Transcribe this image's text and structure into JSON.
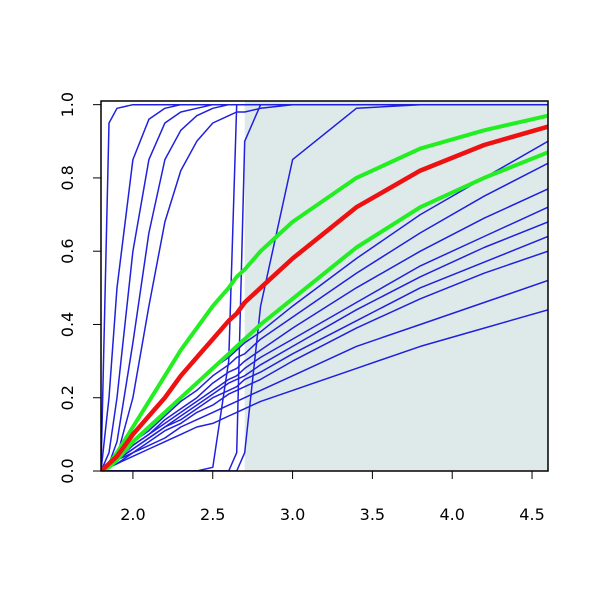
{
  "chart_data": {
    "type": "line",
    "x": [
      1.8,
      1.85,
      1.9,
      2.0,
      2.1,
      2.2,
      2.3,
      2.4,
      2.5,
      2.6,
      2.65,
      2.7,
      2.8,
      3.0,
      3.4,
      3.8,
      4.2,
      4.6
    ],
    "xlim": [
      1.8,
      4.6
    ],
    "ylim": [
      0,
      1.01
    ],
    "xticks": [
      {
        "value": 2,
        "label": "2.0"
      },
      2.5,
      {
        "value": 3,
        "label": "3.0"
      },
      3.5,
      {
        "value": 4,
        "label": "4.0"
      },
      4.5
    ],
    "yticks": [
      {
        "value": 0,
        "label": "0.0"
      },
      0.2,
      0.4,
      0.6,
      0.8,
      {
        "value": 1,
        "label": "1.0"
      }
    ],
    "shade": {
      "xmin": 2.7,
      "color": "#deeaea"
    },
    "series": [
      {
        "color": "#2020dd",
        "line_width": 1.5,
        "values": [
          0,
          0.01,
          0.02,
          0.04,
          0.06,
          0.08,
          0.1,
          0.12,
          0.13,
          0.15,
          0.16,
          0.17,
          0.19,
          0.22,
          0.28,
          0.34,
          0.39,
          0.44
        ]
      },
      {
        "color": "#2020dd",
        "line_width": 1.5,
        "values": [
          0,
          0.01,
          0.02,
          0.05,
          0.07,
          0.09,
          0.12,
          0.14,
          0.16,
          0.18,
          0.19,
          0.2,
          0.22,
          0.26,
          0.34,
          0.4,
          0.46,
          0.52
        ]
      },
      {
        "color": "#2020dd",
        "line_width": 1.5,
        "values": [
          0,
          0.01,
          0.03,
          0.05,
          0.08,
          0.11,
          0.13,
          0.16,
          0.18,
          0.21,
          0.22,
          0.23,
          0.25,
          0.3,
          0.39,
          0.47,
          0.54,
          0.6
        ]
      },
      {
        "color": "#2020dd",
        "line_width": 1.5,
        "values": [
          0,
          0.01,
          0.03,
          0.06,
          0.09,
          0.12,
          0.14,
          0.17,
          0.2,
          0.22,
          0.23,
          0.25,
          0.27,
          0.32,
          0.41,
          0.5,
          0.57,
          0.64
        ]
      },
      {
        "color": "#2020dd",
        "line_width": 1.5,
        "values": [
          0,
          0.02,
          0.03,
          0.06,
          0.09,
          0.12,
          0.15,
          0.18,
          0.21,
          0.24,
          0.25,
          0.26,
          0.29,
          0.34,
          0.44,
          0.53,
          0.61,
          0.68
        ]
      },
      {
        "color": "#2020dd",
        "line_width": 1.5,
        "values": [
          0,
          0.02,
          0.03,
          0.07,
          0.1,
          0.13,
          0.16,
          0.19,
          0.22,
          0.25,
          0.26,
          0.28,
          0.31,
          0.36,
          0.46,
          0.56,
          0.64,
          0.72
        ]
      },
      {
        "color": "#2020dd",
        "line_width": 1.5,
        "values": [
          0,
          0.02,
          0.04,
          0.07,
          0.1,
          0.14,
          0.17,
          0.2,
          0.24,
          0.27,
          0.28,
          0.3,
          0.33,
          0.39,
          0.5,
          0.6,
          0.69,
          0.77
        ]
      },
      {
        "color": "#2020dd",
        "line_width": 1.5,
        "values": [
          0,
          0.02,
          0.04,
          0.08,
          0.11,
          0.15,
          0.19,
          0.22,
          0.26,
          0.29,
          0.31,
          0.32,
          0.36,
          0.42,
          0.54,
          0.65,
          0.75,
          0.84
        ]
      },
      {
        "color": "#2020dd",
        "line_width": 1.5,
        "values": [
          0,
          0.02,
          0.04,
          0.08,
          0.12,
          0.16,
          0.2,
          0.24,
          0.28,
          0.31,
          0.33,
          0.35,
          0.38,
          0.45,
          0.58,
          0.7,
          0.8,
          0.9
        ]
      },
      {
        "color": "#2020dd",
        "line_width": 1.5,
        "values": [
          0,
          0.95,
          0.99,
          1,
          1,
          1,
          1,
          1,
          1,
          1,
          1,
          1,
          1,
          1,
          1,
          1,
          1,
          1
        ]
      },
      {
        "color": "#2020dd",
        "line_width": 1.5,
        "values": [
          0,
          0.2,
          0.5,
          0.85,
          0.96,
          0.99,
          1,
          1,
          1,
          1,
          1,
          1,
          1,
          1,
          1,
          1,
          1,
          1
        ]
      },
      {
        "color": "#2020dd",
        "line_width": 1.5,
        "values": [
          0,
          0.05,
          0.2,
          0.6,
          0.85,
          0.95,
          0.98,
          0.99,
          1,
          1,
          1,
          1,
          1,
          1,
          1,
          1,
          1,
          1
        ]
      },
      {
        "color": "#2020dd",
        "line_width": 1.5,
        "values": [
          0,
          0.02,
          0.08,
          0.35,
          0.65,
          0.85,
          0.93,
          0.97,
          0.99,
          1,
          1,
          1,
          1,
          1,
          1,
          1,
          1,
          1
        ]
      },
      {
        "color": "#2020dd",
        "line_width": 1.5,
        "values": [
          0,
          0.01,
          0.04,
          0.2,
          0.45,
          0.68,
          0.82,
          0.9,
          0.95,
          0.97,
          0.98,
          0.98,
          0.99,
          1,
          1,
          1,
          1,
          1
        ]
      },
      {
        "color": "#2020dd",
        "line_width": 1.5,
        "values": [
          0,
          0,
          0,
          0,
          0,
          0,
          0,
          0,
          0.01,
          0.3,
          1,
          1,
          1,
          1,
          1,
          1,
          1,
          1
        ]
      },
      {
        "color": "#2020dd",
        "line_width": 1.5,
        "values": [
          0,
          0,
          0,
          0,
          0,
          0,
          0,
          0,
          0,
          0,
          0.05,
          0.9,
          1,
          1,
          1,
          1,
          1,
          1
        ]
      },
      {
        "color": "#2020dd",
        "line_width": 1.5,
        "values": [
          0,
          0,
          0,
          0,
          0,
          0,
          0,
          0,
          0,
          0,
          0,
          0.05,
          0.45,
          0.85,
          0.99,
          1,
          1,
          1
        ]
      },
      {
        "color": "#22ee22",
        "line_width": 4,
        "values": [
          0,
          0.02,
          0.05,
          0.12,
          0.19,
          0.26,
          0.33,
          0.39,
          0.45,
          0.5,
          0.53,
          0.55,
          0.6,
          0.68,
          0.8,
          0.88,
          0.93,
          0.97
        ]
      },
      {
        "color": "#22ee22",
        "line_width": 4,
        "values": [
          0,
          0.01,
          0.03,
          0.08,
          0.12,
          0.16,
          0.2,
          0.24,
          0.28,
          0.32,
          0.34,
          0.36,
          0.4,
          0.47,
          0.61,
          0.72,
          0.8,
          0.87
        ]
      },
      {
        "color": "#ee1111",
        "line_width": 4.5,
        "values": [
          0,
          0.02,
          0.04,
          0.1,
          0.15,
          0.2,
          0.26,
          0.31,
          0.36,
          0.41,
          0.43,
          0.46,
          0.5,
          0.58,
          0.72,
          0.82,
          0.89,
          0.94
        ]
      }
    ]
  }
}
